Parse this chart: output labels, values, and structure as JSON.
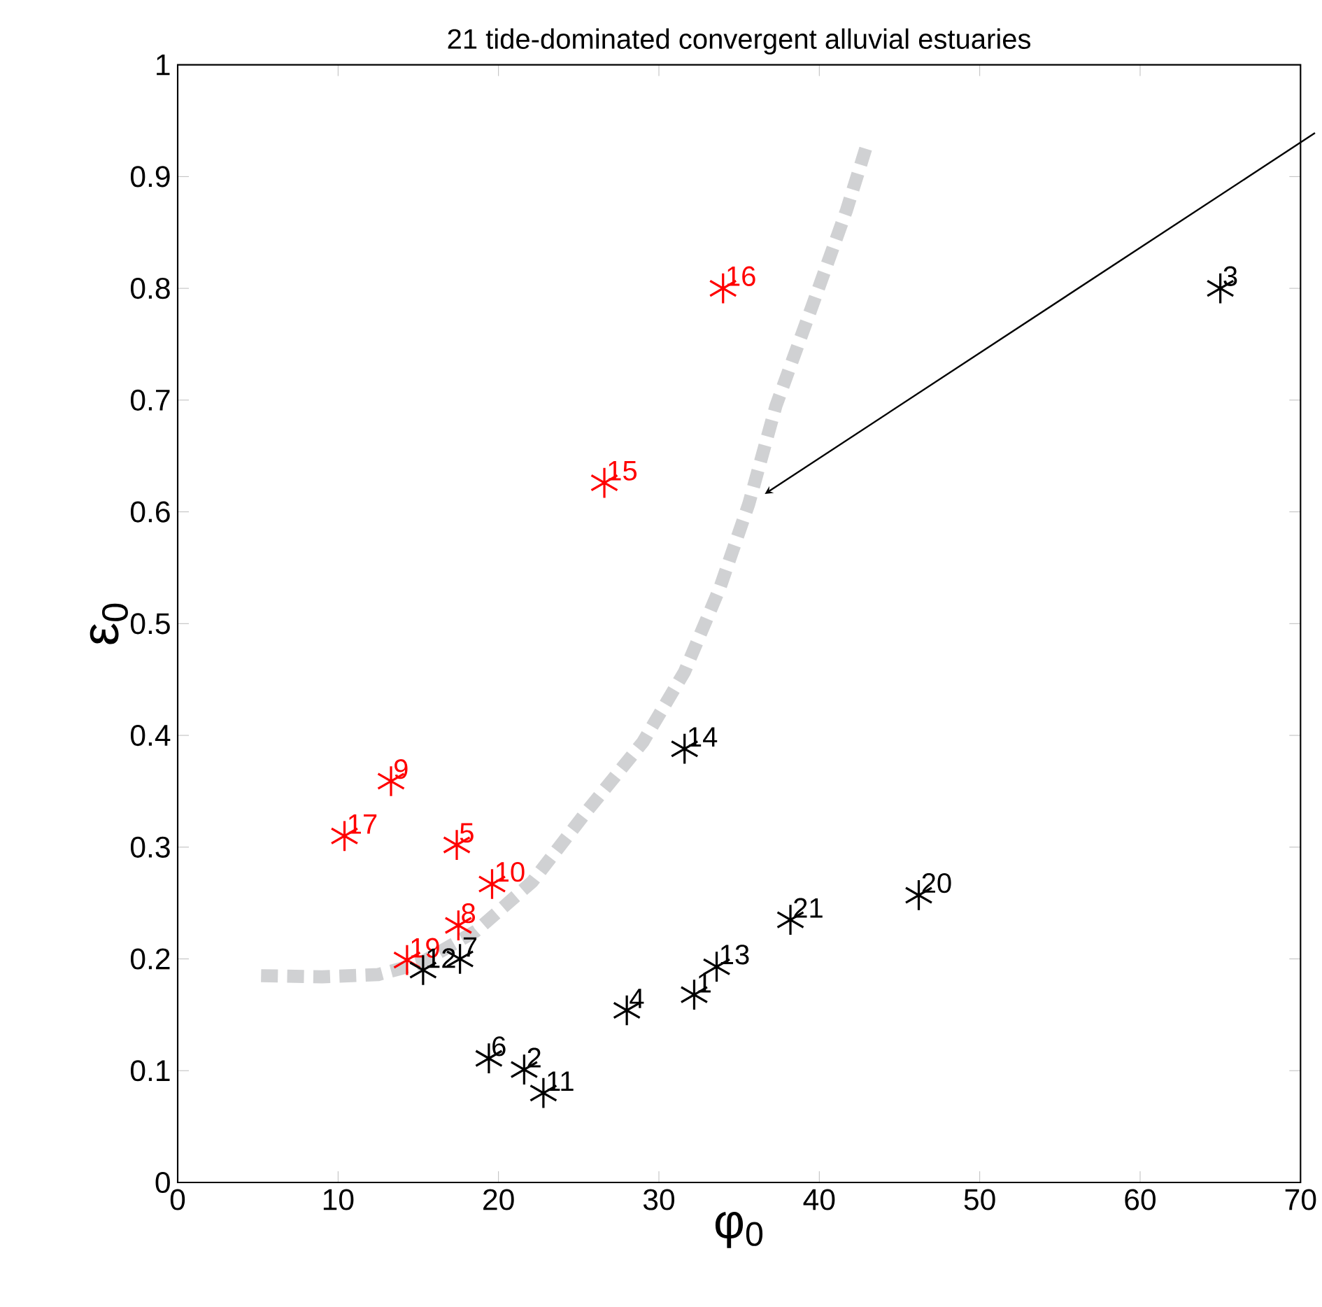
{
  "chart_data": {
    "type": "scatter",
    "title": "21 tide-dominated convergent alluvial estuaries",
    "xlabel": "φ$_{0}$",
    "ylabel": "ε$_{0}$",
    "xlim": [
      0,
      70
    ],
    "ylim": [
      0,
      1
    ],
    "xticks": [
      0,
      10,
      20,
      30,
      40,
      50,
      60,
      70
    ],
    "yticks": [
      0,
      0.1,
      0.2,
      0.3,
      0.4,
      0.5,
      0.6,
      0.7,
      0.8,
      0.9,
      1
    ],
    "grid": false,
    "marker": "cross",
    "series": [
      {
        "type": "line",
        "color": "#d0d1d3",
        "line_style": "dashed",
        "marker": "none",
        "x": [
          5.2,
          9.0,
          12.5,
          15.1,
          18.6,
          22.1,
          25.5,
          29.0,
          31.6,
          33.8,
          35.6,
          37.3,
          39.5,
          41.7,
          43.0
        ],
        "values": [
          0.185,
          0.184,
          0.186,
          0.196,
          0.225,
          0.269,
          0.332,
          0.394,
          0.457,
          0.532,
          0.607,
          0.695,
          0.782,
          0.87,
          0.93
        ]
      },
      {
        "color": "#ff0000",
        "x": [
          34.0,
          26.6,
          13.3,
          10.4,
          17.4,
          19.6,
          17.5,
          14.3
        ],
        "values": [
          0.8,
          0.626,
          0.359,
          0.31,
          0.302,
          0.267,
          0.23,
          0.199
        ]
      },
      {
        "color": "#000000",
        "x": [
          65.0,
          31.6,
          46.2,
          38.2,
          33.6,
          32.2,
          28.0,
          19.4,
          21.6,
          22.8,
          15.3,
          17.6
        ],
        "values": [
          0.8,
          0.388,
          0.257,
          0.235,
          0.193,
          0.168,
          0.154,
          0.111,
          0.101,
          0.08,
          0.19,
          0.2
        ]
      }
    ],
    "annotations": [
      {
        "text": "16",
        "x": 34.0,
        "y": 0.8
      },
      {
        "text": "15",
        "x": 26.6,
        "y": 0.626
      },
      {
        "text": "9",
        "x": 13.3,
        "y": 0.359
      },
      {
        "text": "17",
        "x": 10.4,
        "y": 0.31
      },
      {
        "text": "5",
        "x": 17.4,
        "y": 0.302
      },
      {
        "text": "10",
        "x": 19.6,
        "y": 0.267
      },
      {
        "text": "8",
        "x": 17.5,
        "y": 0.23
      },
      {
        "text": "19",
        "x": 14.3,
        "y": 0.199
      },
      {
        "text": "3",
        "x": 65.0,
        "y": 0.8
      },
      {
        "text": "14",
        "x": 31.6,
        "y": 0.388
      },
      {
        "text": "20",
        "x": 46.2,
        "y": 0.257
      },
      {
        "text": "21",
        "x": 38.2,
        "y": 0.235
      },
      {
        "text": "13",
        "x": 33.6,
        "y": 0.193
      },
      {
        "text": "1",
        "x": 32.2,
        "y": 0.168
      },
      {
        "text": "4",
        "x": 28.0,
        "y": 0.154
      },
      {
        "text": "6",
        "x": 19.4,
        "y": 0.111
      },
      {
        "text": "2",
        "x": 21.6,
        "y": 0.101
      },
      {
        "text": "11",
        "x": 22.8,
        "y": 0.08
      },
      {
        "text": "12",
        "x": 15.3,
        "y": 0.19
      },
      {
        "text": "7",
        "x": 17.6,
        "y": 0.2
      }
    ]
  }
}
